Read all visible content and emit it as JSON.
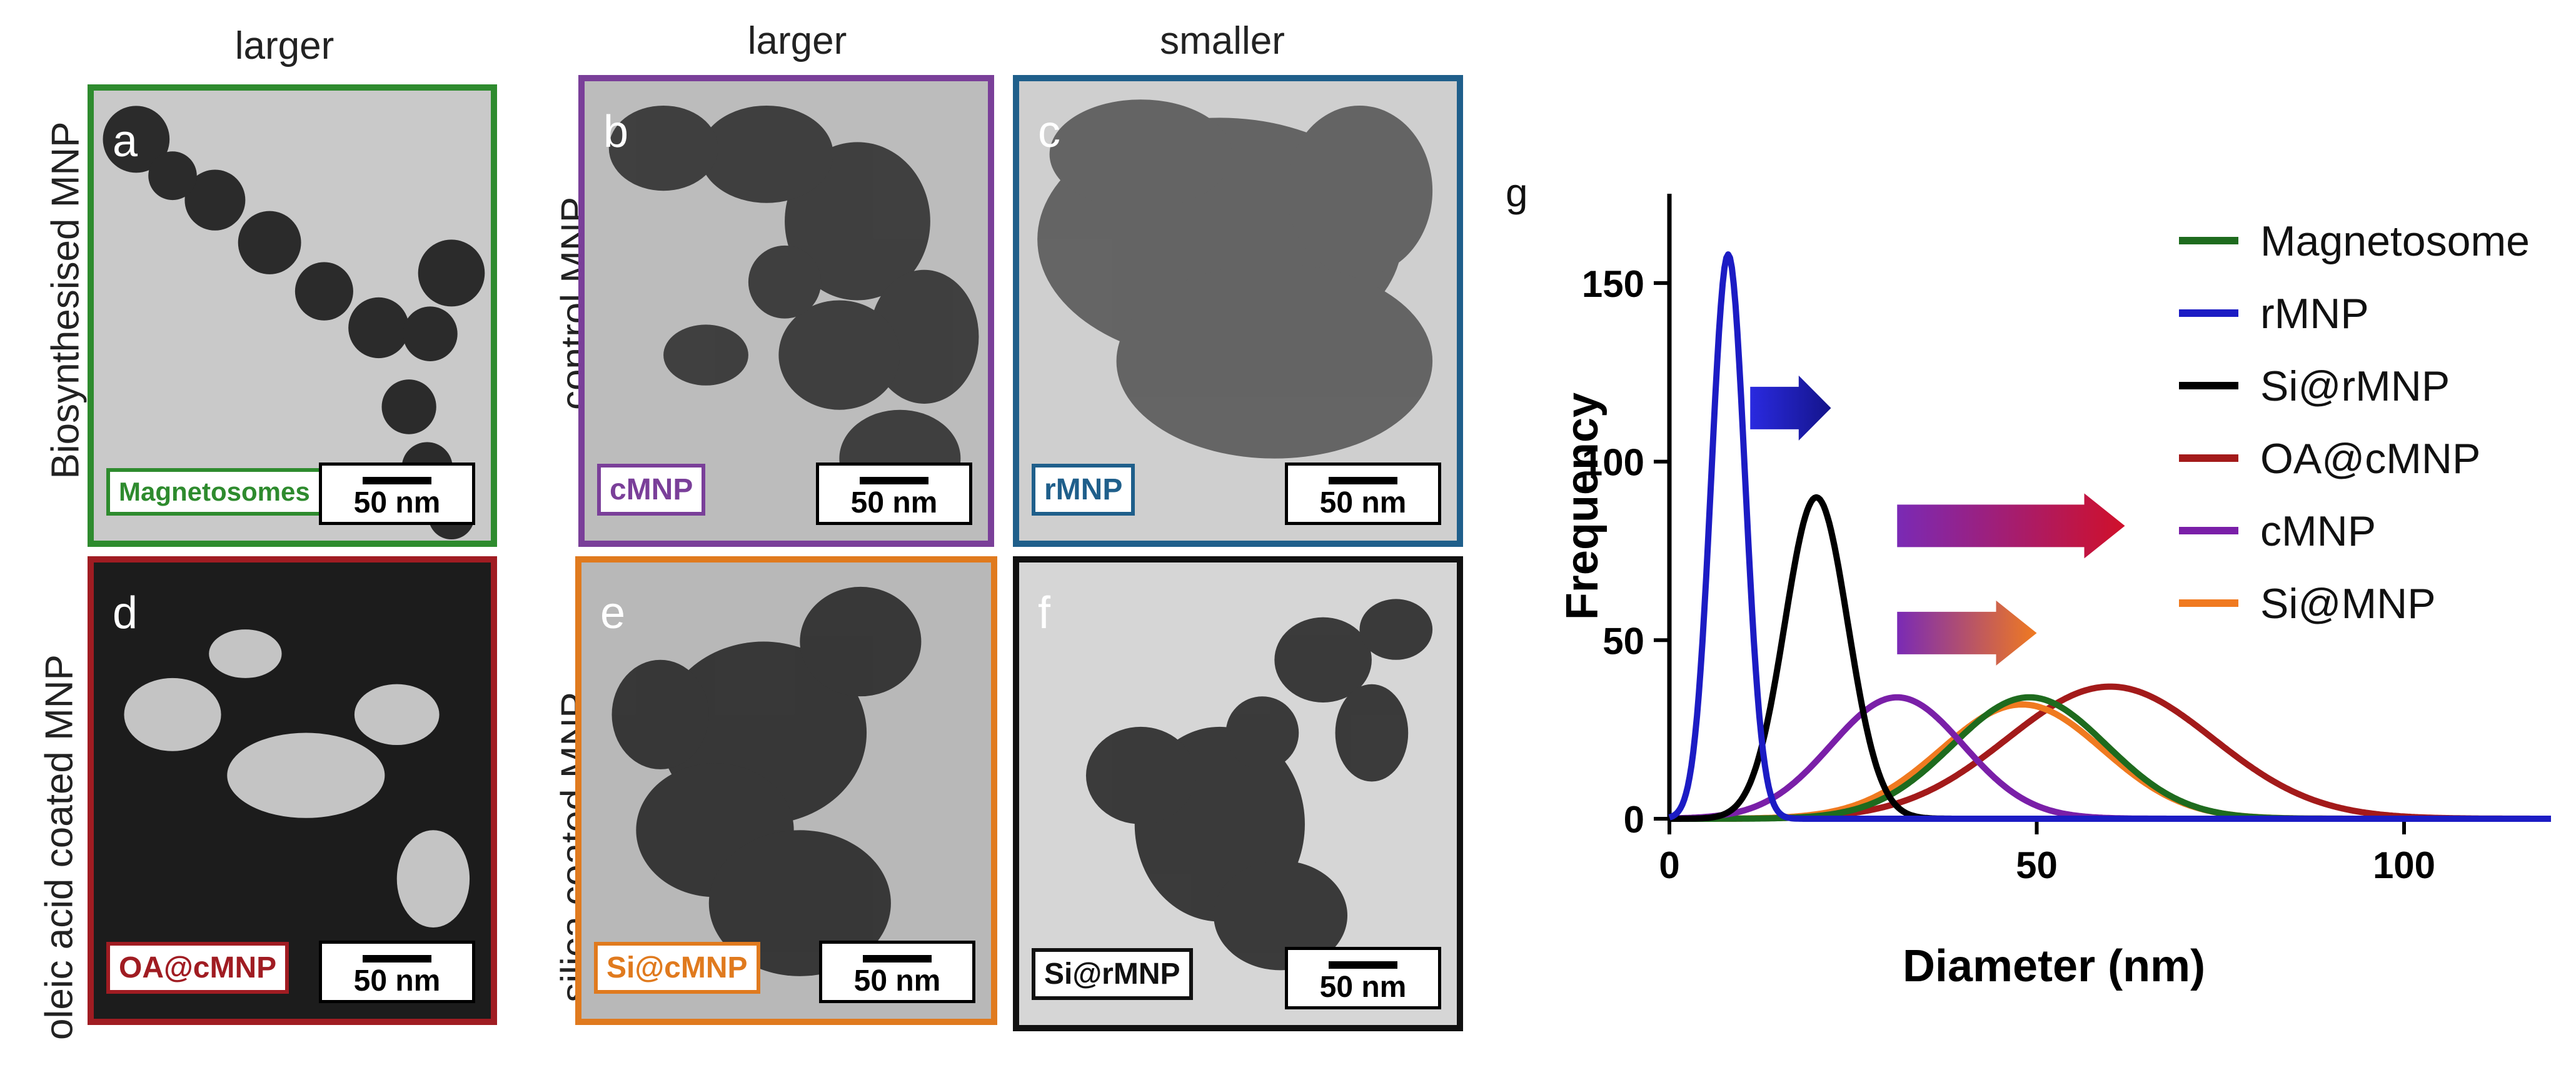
{
  "column_labels": [
    "larger",
    "larger",
    "smaller"
  ],
  "row_labels": {
    "row1_left": "Biosynthesised MNP",
    "row1_mid": "control MNP",
    "row2_left": "oleic acid coated MNP",
    "row2_mid": "silica coated MNP"
  },
  "panels": [
    {
      "letter": "a",
      "tag": "Magnetosomes",
      "scale": "50 nm",
      "color": "#2e8b2e"
    },
    {
      "letter": "b",
      "tag": "cMNP",
      "scale": "50 nm",
      "color": "#7a3f99"
    },
    {
      "letter": "c",
      "tag": "rMNP",
      "scale": "50 nm",
      "color": "#1f5f8b"
    },
    {
      "letter": "d",
      "tag": "OA@cMNP",
      "scale": "50 nm",
      "color": "#a01c22"
    },
    {
      "letter": "e",
      "tag": "Si@cMNP",
      "scale": "50 nm",
      "color": "#e07a1e"
    },
    {
      "letter": "f",
      "tag": "Si@rMNP",
      "scale": "50 nm",
      "color": "#111111"
    }
  ],
  "chart_data": {
    "type": "line",
    "panel_letter": "g",
    "xlabel": "Diameter (nm)",
    "ylabel": "Frequency",
    "xlim": [
      0,
      120
    ],
    "ylim": [
      0,
      175
    ],
    "xticks": [
      0,
      50,
      100
    ],
    "yticks": [
      0,
      50,
      100,
      150
    ],
    "series": [
      {
        "name": "Magnetosome",
        "color": "#1e6b1e",
        "peak_x": 49,
        "peak_y": 34,
        "sigma": 10.5
      },
      {
        "name": "rMNP",
        "color": "#1c1cc4",
        "peak_x": 8,
        "peak_y": 158,
        "sigma": 2.3
      },
      {
        "name": "Si@rMNP",
        "color": "#000000",
        "peak_x": 20,
        "peak_y": 90,
        "sigma": 4.3
      },
      {
        "name": "OA@cMNP",
        "color": "#a31a1a",
        "peak_x": 60,
        "peak_y": 37,
        "sigma": 14
      },
      {
        "name": "cMNP",
        "color": "#7a1fa8",
        "peak_x": 31,
        "peak_y": 34,
        "sigma": 9
      },
      {
        "name": "Si@MNP",
        "color": "#f07a20",
        "peak_x": 48,
        "peak_y": 32,
        "sigma": 11
      }
    ],
    "arrows": [
      {
        "from_x": 11,
        "to_x": 22,
        "y": 115,
        "colors": [
          "#2a2ae0",
          "#14148a"
        ]
      },
      {
        "from_x": 31,
        "to_x": 62,
        "y": 82,
        "colors": [
          "#7a2ab5",
          "#d0102a"
        ]
      },
      {
        "from_x": 31,
        "to_x": 50,
        "y": 52,
        "colors": [
          "#7a2ab5",
          "#f07a20"
        ]
      }
    ]
  }
}
